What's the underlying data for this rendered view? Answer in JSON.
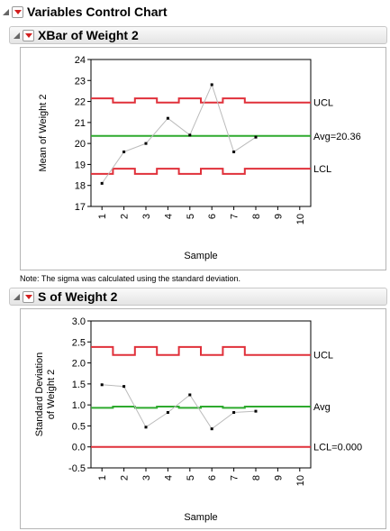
{
  "main": {
    "title": "Variables Control Chart"
  },
  "xbar_section": {
    "title": "XBar of Weight 2"
  },
  "s_section": {
    "title": "S of Weight 2"
  },
  "note": "Note: The sigma was calculated using the standard deviation.",
  "colors": {
    "limit": "#e0303a",
    "center": "#2eaa2e",
    "data": "#bbbbbb",
    "point": "#000000"
  },
  "chart_data": [
    {
      "type": "line",
      "title": "",
      "xlabel": "Sample",
      "ylabel": "Mean of Weight 2",
      "ylim": [
        17,
        24
      ],
      "yticks": [
        "24",
        "23",
        "22",
        "21",
        "20",
        "19",
        "18",
        "17"
      ],
      "xticks": [
        "1",
        "2",
        "3",
        "4",
        "5",
        "6",
        "7",
        "8",
        "9",
        "10"
      ],
      "x": [
        1,
        2,
        3,
        4,
        5,
        6,
        7,
        8
      ],
      "series": [
        {
          "values": [
            18.1,
            19.6,
            20.0,
            21.2,
            20.4,
            22.8,
            19.6,
            20.3
          ]
        }
      ],
      "center": {
        "value": 20.36,
        "label": "Avg=20.36"
      },
      "ucl": {
        "label": "UCL",
        "steps": [
          22.15,
          21.95,
          22.15,
          21.95,
          22.15,
          21.95,
          22.15,
          21.95,
          21.95,
          21.95
        ]
      },
      "lcl": {
        "label": "LCL",
        "steps": [
          18.55,
          18.8,
          18.55,
          18.8,
          18.55,
          18.8,
          18.55,
          18.8,
          18.8,
          18.8
        ]
      },
      "grid": false
    },
    {
      "type": "line",
      "title": "",
      "xlabel": "Sample",
      "ylabel_lines": [
        "Standard Deviation",
        "of Weight 2"
      ],
      "ylim": [
        -0.5,
        3.0
      ],
      "yticks": [
        "3.0",
        "2.5",
        "2.0",
        "1.5",
        "1.0",
        "0.5",
        "0.0",
        "-0.5"
      ],
      "xticks": [
        "1",
        "2",
        "3",
        "4",
        "5",
        "6",
        "7",
        "8",
        "9",
        "10"
      ],
      "x": [
        1,
        2,
        3,
        4,
        5,
        6,
        7,
        8
      ],
      "series": [
        {
          "values": [
            1.48,
            1.44,
            0.47,
            0.82,
            1.24,
            0.43,
            0.82,
            0.85
          ]
        }
      ],
      "center": {
        "label": "Avg",
        "steps": [
          0.93,
          0.96,
          0.93,
          0.96,
          0.93,
          0.96,
          0.93,
          0.96,
          0.96,
          0.96
        ]
      },
      "ucl": {
        "label": "UCL",
        "steps": [
          2.38,
          2.19,
          2.38,
          2.19,
          2.38,
          2.19,
          2.38,
          2.19,
          2.19,
          2.19
        ]
      },
      "lcl": {
        "value": 0.0,
        "label": "LCL=0.000"
      },
      "grid": false
    }
  ]
}
